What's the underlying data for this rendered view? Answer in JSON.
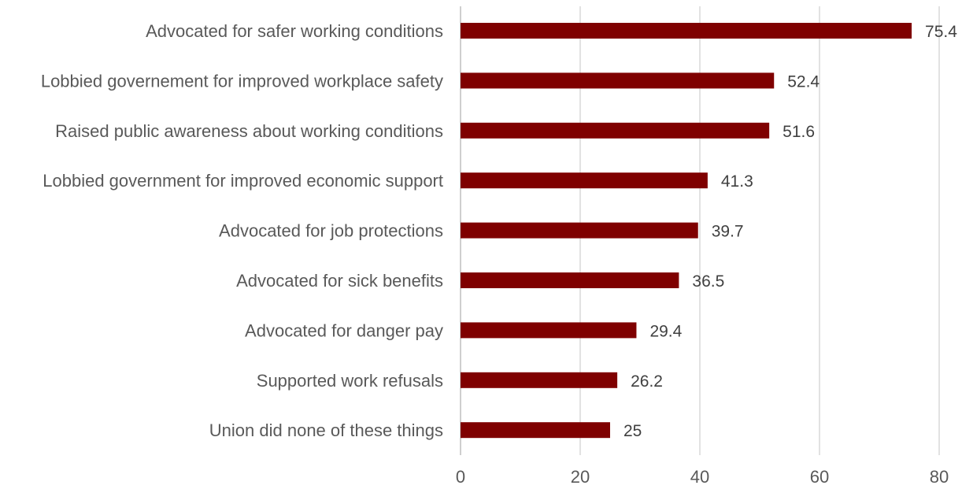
{
  "chart_data": {
    "type": "bar",
    "orientation": "horizontal",
    "title": "",
    "xlabel": "",
    "ylabel": "",
    "categories": [
      "Advocated for safer working conditions",
      "Lobbied governement for improved workplace safety",
      "Raised public awareness about working conditions",
      "Lobbied government for improved economic support",
      "Advocated for job protections",
      "Advocated for sick benefits",
      "Advocated for danger pay",
      "Supported work refusals",
      "Union did none of these things"
    ],
    "values": [
      75.4,
      52.4,
      51.6,
      41.3,
      39.7,
      36.5,
      29.4,
      26.2,
      25
    ],
    "value_labels": [
      "75.4",
      "52.4",
      "51.6",
      "41.3",
      "39.7",
      "36.5",
      "29.4",
      "26.2",
      "25"
    ],
    "xlim": [
      0,
      80
    ],
    "xticks": [
      0,
      20,
      40,
      60,
      80
    ],
    "xtick_labels": [
      "0",
      "20",
      "40",
      "60",
      "80"
    ],
    "grid": "vertical",
    "legend": "none",
    "bar_color": "#7f0000"
  }
}
